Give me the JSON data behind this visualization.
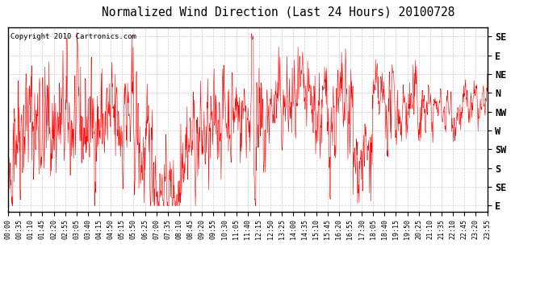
{
  "title": "Normalized Wind Direction (Last 24 Hours) 20100728",
  "copyright": "Copyright 2010 Cartronics.com",
  "line_color": "#ff0000",
  "bg_color": "#ffffff",
  "grid_color": "#c8c8c8",
  "ytick_labels": [
    "E",
    "SE",
    "S",
    "SW",
    "W",
    "NW",
    "N",
    "NE",
    "E",
    "SE"
  ],
  "ytick_values": [
    0,
    1,
    2,
    3,
    4,
    5,
    6,
    7,
    8,
    9
  ],
  "ylim": [
    -0.3,
    9.5
  ],
  "xtick_labels": [
    "00:00",
    "00:35",
    "01:10",
    "01:45",
    "02:20",
    "02:55",
    "03:05",
    "03:40",
    "04:15",
    "04:50",
    "05:15",
    "05:50",
    "06:25",
    "07:00",
    "07:35",
    "08:10",
    "08:45",
    "09:20",
    "09:55",
    "10:30",
    "11:05",
    "11:40",
    "12:15",
    "12:50",
    "13:25",
    "14:00",
    "14:35",
    "15:10",
    "15:45",
    "16:20",
    "16:55",
    "17:30",
    "18:05",
    "18:40",
    "19:15",
    "19:50",
    "20:25",
    "21:10",
    "21:35",
    "22:10",
    "22:45",
    "23:20",
    "23:55"
  ],
  "seed": 42,
  "n_points": 1440
}
